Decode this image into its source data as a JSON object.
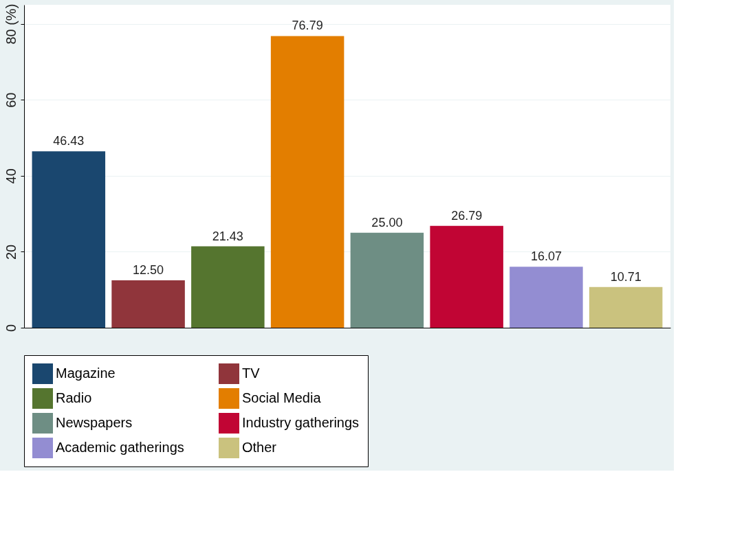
{
  "chart_data": {
    "type": "bar",
    "categories": [
      null,
      null,
      null,
      null,
      null,
      null,
      null,
      null
    ],
    "series": [
      {
        "name": "Magazine",
        "color": "#1a476f",
        "values": [
          46.43,
          null,
          null,
          null,
          null,
          null,
          null,
          null
        ],
        "value_labels": [
          "46.43",
          null,
          null,
          null,
          null,
          null,
          null,
          null
        ]
      },
      {
        "name": "TV",
        "color": "#90353b",
        "values": [
          null,
          12.5,
          null,
          null,
          null,
          null,
          null,
          null
        ],
        "value_labels": [
          null,
          "12.50",
          null,
          null,
          null,
          null,
          null,
          null
        ]
      },
      {
        "name": "Radio",
        "color": "#55752f",
        "values": [
          null,
          null,
          21.43,
          null,
          null,
          null,
          null,
          null
        ],
        "value_labels": [
          null,
          null,
          "21.43",
          null,
          null,
          null,
          null,
          null
        ]
      },
      {
        "name": "Social Media",
        "color": "#e37e00",
        "values": [
          null,
          null,
          null,
          76.79,
          null,
          null,
          null,
          null
        ],
        "value_labels": [
          null,
          null,
          null,
          "76.79",
          null,
          null,
          null,
          null
        ]
      },
      {
        "name": "Newspapers",
        "color": "#6e8e84",
        "values": [
          null,
          null,
          null,
          null,
          25.0,
          null,
          null,
          null
        ],
        "value_labels": [
          null,
          null,
          null,
          null,
          "25.00",
          null,
          null,
          null
        ]
      },
      {
        "name": "Industry gatherings",
        "color": "#c10534",
        "values": [
          null,
          null,
          null,
          null,
          null,
          26.79,
          null,
          null
        ],
        "value_labels": [
          null,
          null,
          null,
          null,
          null,
          "26.79",
          null,
          null
        ]
      },
      {
        "name": "Academic gatherings",
        "color": "#938dd2",
        "values": [
          null,
          null,
          null,
          null,
          null,
          null,
          16.07,
          null
        ],
        "value_labels": [
          null,
          null,
          null,
          null,
          null,
          null,
          "16.07",
          null
        ]
      },
      {
        "name": "Other",
        "color": "#cac27e",
        "values": [
          null,
          null,
          null,
          null,
          null,
          null,
          null,
          10.71
        ],
        "value_labels": [
          null,
          null,
          null,
          null,
          null,
          null,
          null,
          "10.71"
        ]
      }
    ],
    "ylim": [
      0,
      85
    ],
    "yticks": [
      0,
      20,
      40,
      60,
      {
        "value": 80,
        "label": "80 (%)"
      }
    ],
    "grid": "y",
    "legend": "bottom",
    "tick_labels": "y"
  }
}
